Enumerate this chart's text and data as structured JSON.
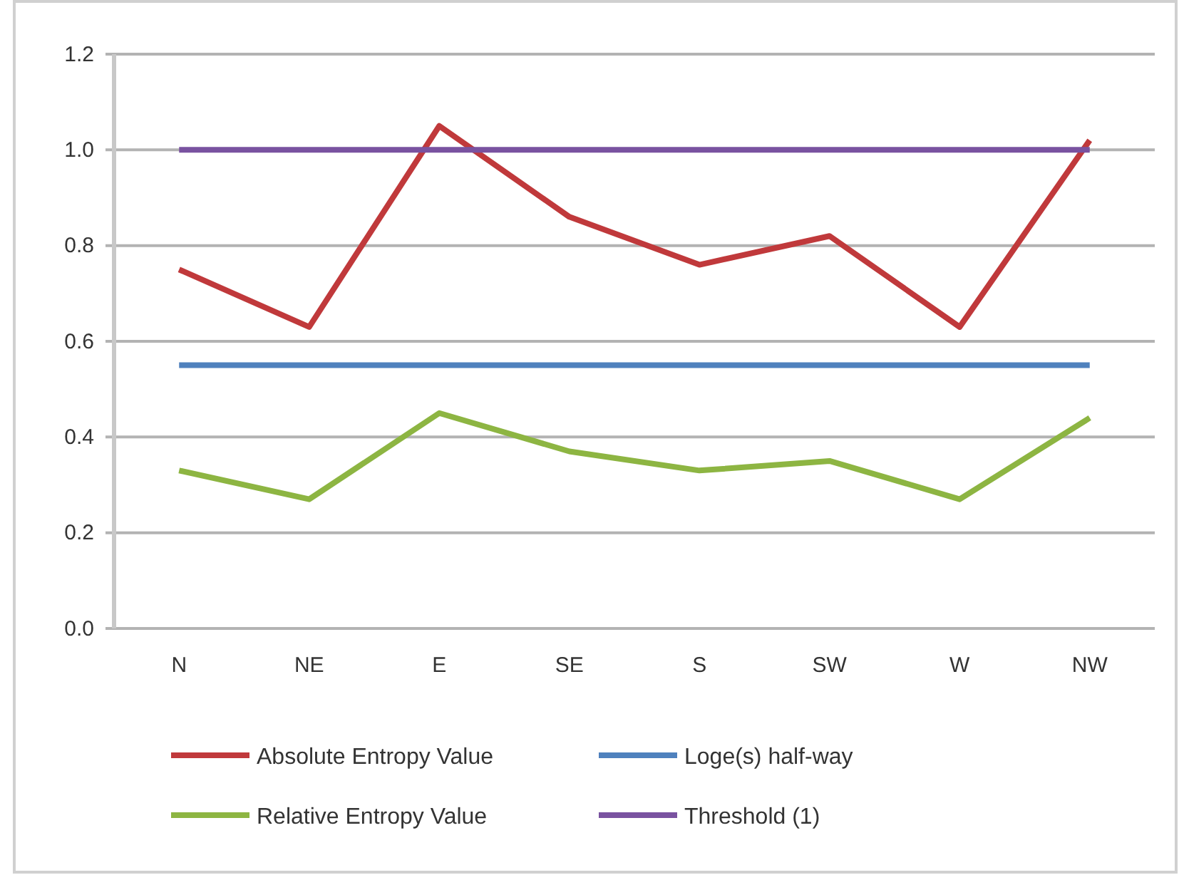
{
  "chart_data": {
    "type": "line",
    "categories": [
      "N",
      "NE",
      "E",
      "SE",
      "S",
      "SW",
      "W",
      "NW"
    ],
    "series": [
      {
        "name": "Absolute Entropy Value",
        "color": "#c0393b",
        "values": [
          0.75,
          0.63,
          1.05,
          0.86,
          0.76,
          0.82,
          0.63,
          1.02
        ]
      },
      {
        "name": "Loge(s) half-way",
        "color": "#4f81bd",
        "values": [
          0.55,
          0.55,
          0.55,
          0.55,
          0.55,
          0.55,
          0.55,
          0.55
        ]
      },
      {
        "name": "Relative Entropy Value",
        "color": "#8db542",
        "values": [
          0.33,
          0.27,
          0.45,
          0.37,
          0.33,
          0.35,
          0.27,
          0.44
        ]
      },
      {
        "name": "Threshold (1)",
        "color": "#7952a0",
        "values": [
          1.0,
          1.0,
          1.0,
          1.0,
          1.0,
          1.0,
          1.0,
          1.0
        ]
      }
    ],
    "ylim": [
      0,
      1.2
    ],
    "yticks": [
      {
        "value": 0,
        "label": "0.0"
      },
      0.2,
      0.4,
      0.6,
      0.8,
      {
        "value": 1,
        "label": "1.0"
      },
      1.2
    ],
    "grid": "y",
    "legend": "bottom",
    "marker": "none",
    "line_style": "solid"
  }
}
